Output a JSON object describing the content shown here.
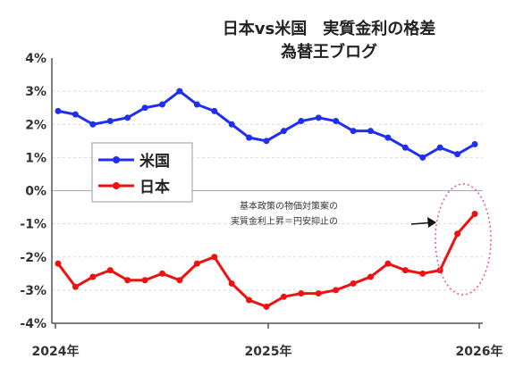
{
  "chart_data": {
    "type": "line",
    "title": "日本vs米国　実質金利の格差",
    "subtitle": "為替王ブログ",
    "ylim": [
      -4,
      4
    ],
    "yticks": [
      "4%",
      "3%",
      "2%",
      "1%",
      "0%",
      "-1%",
      "-2%",
      "-3%",
      "-4%"
    ],
    "xticks": [
      "2024年",
      "2025年",
      "2026年"
    ],
    "legend_position": "center-left",
    "grid": true,
    "series": [
      {
        "name": "米国",
        "color": "#1f2ff0",
        "values": [
          2.4,
          2.3,
          2.0,
          2.1,
          2.2,
          2.5,
          2.6,
          3.0,
          2.6,
          2.4,
          2.0,
          1.6,
          1.5,
          1.8,
          2.1,
          2.2,
          2.1,
          1.8,
          1.8,
          1.6,
          1.3,
          1.0,
          1.3,
          1.1,
          1.4
        ]
      },
      {
        "name": "日本",
        "color": "#ee1111",
        "values": [
          -2.2,
          -2.9,
          -2.6,
          -2.4,
          -2.7,
          -2.7,
          -2.5,
          -2.7,
          -2.2,
          -2.0,
          -2.8,
          -3.3,
          -3.5,
          -3.2,
          -3.1,
          -3.1,
          -3.0,
          -2.8,
          -2.6,
          -2.2,
          -2.4,
          -2.5,
          -2.4,
          -1.3,
          -0.7
        ]
      }
    ],
    "annotation": {
      "line1": "基本政策の物価対策案の",
      "line2": "実質金利上昇＝円安抑止の"
    }
  }
}
